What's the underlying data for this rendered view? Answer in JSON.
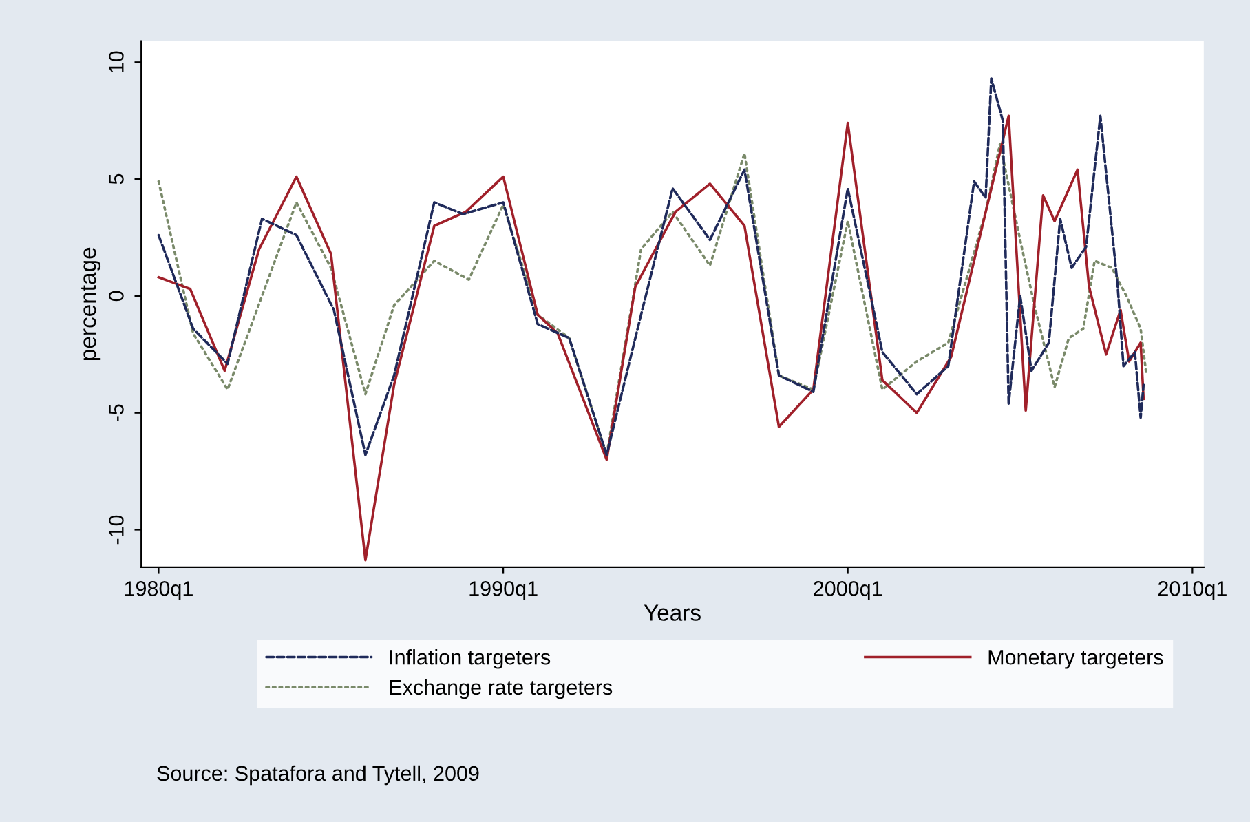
{
  "chart_data": {
    "type": "line",
    "xlabel": "Years",
    "ylabel": "percentage",
    "xlim": [
      "1979-07",
      "2010-05"
    ],
    "ylim": [
      -11.6,
      10.9
    ],
    "xticks": [
      {
        "value": "1980-01",
        "label": "1980q1"
      },
      {
        "value": "1990-01",
        "label": "1990q1"
      },
      {
        "value": "2000-01",
        "label": "2000q1"
      },
      {
        "value": "2010-01",
        "label": "2010q1"
      }
    ],
    "yticks": [
      -10,
      -5,
      0,
      5,
      10
    ],
    "grid": false,
    "legend": "bottom",
    "marker": "none",
    "annotations": [
      "Source: Spatafora and Tytell, 2009"
    ],
    "series": [
      {
        "name": "Inflation targeters",
        "color": "#1f2a5a",
        "line_style": "dashed",
        "x": [
          "1980-01",
          "1981-01",
          "1982-01",
          "1983-01",
          "1984-01",
          "1985-02",
          "1986-01",
          "1986-11",
          "1988-01",
          "1988-11",
          "1990-01",
          "1991-01",
          "1991-12",
          "1993-01",
          "1994-01",
          "1994-12",
          "1996-01",
          "1997-01",
          "1998-01",
          "1999-01",
          "2000-01",
          "2000-11",
          "2001-01",
          "2002-01",
          "2002-12",
          "2003-09",
          "2004-01",
          "2004-03",
          "2004-07",
          "2004-09",
          "2005-01",
          "2005-05",
          "2005-11",
          "2006-03",
          "2006-07",
          "2006-12",
          "2007-05",
          "2007-11",
          "2008-01",
          "2008-05",
          "2008-07",
          "2008-08"
        ],
        "values": [
          2.6,
          -1.4,
          -2.9,
          3.3,
          2.6,
          -0.6,
          -6.8,
          -3.4,
          4.0,
          3.5,
          4.0,
          -1.2,
          -1.8,
          -6.8,
          -0.8,
          4.6,
          2.4,
          5.4,
          -3.4,
          -4.1,
          4.6,
          -1.2,
          -2.4,
          -4.2,
          -3.0,
          4.9,
          4.2,
          9.3,
          7.5,
          -4.6,
          0.0,
          -3.2,
          -2.0,
          3.3,
          1.2,
          2.1,
          7.7,
          0.4,
          -3.0,
          -2.4,
          -5.2,
          -3.8
        ]
      },
      {
        "name": "Exchange rate targeters",
        "color": "#7a8a6a",
        "line_style": "dotted",
        "x": [
          "1980-01",
          "1981-01",
          "1982-01",
          "1984-01",
          "1985-01",
          "1986-01",
          "1986-11",
          "1988-01",
          "1989-01",
          "1990-01",
          "1991-01",
          "1991-12",
          "1993-01",
          "1994-01",
          "1994-12",
          "1996-01",
          "1997-01",
          "1998-01",
          "1999-01",
          "2000-01",
          "2001-01",
          "2002-01",
          "2002-12",
          "2004-01",
          "2004-06",
          "2005-01",
          "2005-06",
          "2006-01",
          "2006-06",
          "2006-11",
          "2007-03",
          "2007-09",
          "2008-02",
          "2008-07",
          "2008-09"
        ],
        "values": [
          4.9,
          -1.6,
          -4.0,
          4.0,
          1.2,
          -4.2,
          -0.4,
          1.5,
          0.7,
          3.9,
          -0.8,
          -1.8,
          -6.8,
          2.0,
          3.6,
          1.3,
          6.1,
          -3.4,
          -4.0,
          3.2,
          -4.0,
          -2.8,
          -2.0,
          3.6,
          6.5,
          2.4,
          -0.4,
          -3.9,
          -1.8,
          -1.4,
          1.5,
          1.2,
          0.0,
          -1.4,
          -3.4
        ]
      },
      {
        "name": "Monetary targeters",
        "color": "#a0202a",
        "line_style": "solid",
        "x": [
          "1980-01",
          "1980-12",
          "1981-12",
          "1982-12",
          "1984-01",
          "1985-01",
          "1986-01",
          "1986-11",
          "1988-01",
          "1988-12",
          "1990-01",
          "1991-01",
          "1991-08",
          "1993-01",
          "1993-11",
          "1995-01",
          "1996-01",
          "1997-01",
          "1998-01",
          "1999-01",
          "2000-01",
          "2001-01",
          "2002-01",
          "2003-01",
          "2004-09",
          "2005-03",
          "2005-09",
          "2006-01",
          "2006-09",
          "2007-01",
          "2007-07",
          "2007-12",
          "2008-03",
          "2008-07",
          "2008-08"
        ],
        "values": [
          0.8,
          0.3,
          -3.2,
          2.0,
          5.1,
          1.8,
          -11.3,
          -3.8,
          3.0,
          3.6,
          5.1,
          -0.8,
          -1.6,
          -7.0,
          0.4,
          3.6,
          4.8,
          3.0,
          -5.6,
          -4.0,
          7.4,
          -3.6,
          -5.0,
          -2.6,
          7.7,
          -4.9,
          4.3,
          3.2,
          5.4,
          0.4,
          -2.5,
          -0.6,
          -2.8,
          -2.0,
          -4.4
        ]
      }
    ]
  }
}
